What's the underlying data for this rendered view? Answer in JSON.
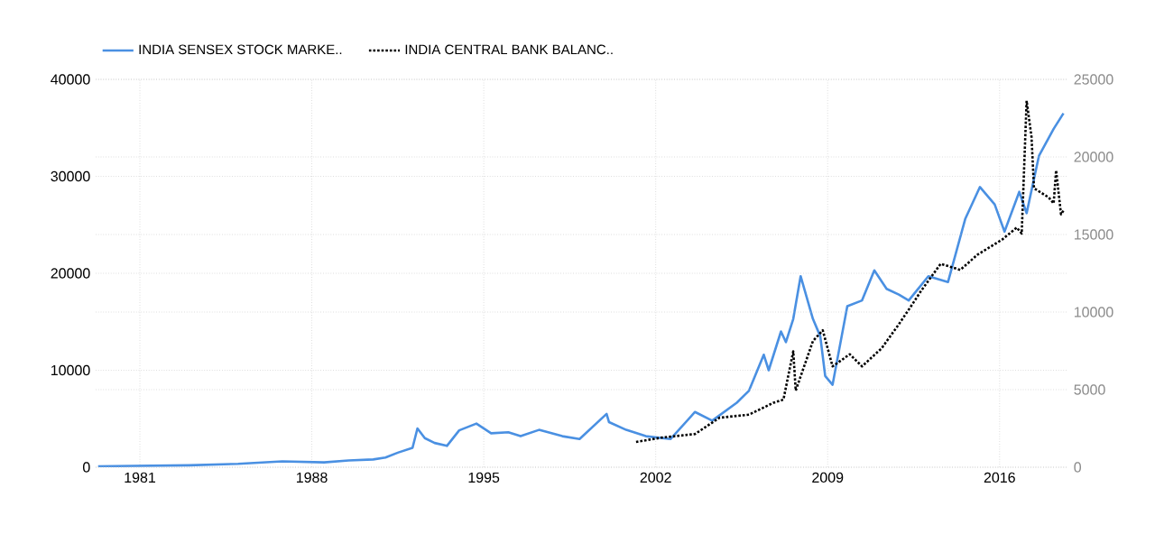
{
  "chart_data": {
    "type": "line",
    "legend": "top left",
    "grid": true,
    "xlim": [
      1979.2,
      2018.8
    ],
    "xticks": [
      1981,
      1988,
      1995,
      2002,
      2009,
      2016
    ],
    "ylim": [
      0,
      40000
    ],
    "yticks": [
      0,
      10000,
      20000,
      30000,
      40000
    ],
    "y2lim": [
      0,
      25000
    ],
    "y2ticks": [
      0,
      5000,
      10000,
      15000,
      20000,
      25000
    ],
    "series": [
      {
        "name": "INDIA SENSEX STOCK MARKE..",
        "color": "#4a90e2",
        "line_style": "solid",
        "x": [
          1979.3,
          1983,
          1985,
          1986.8,
          1988.5,
          1989.5,
          1990.5,
          1991,
          1991.5,
          1992.1,
          1992.3,
          1992.6,
          1993,
          1993.5,
          1994,
          1994.7,
          1995.3,
          1996,
          1996.5,
          1997.25,
          1998.2,
          1998.9,
          2000.0,
          2000.1,
          2000.8,
          2001.6,
          2002.6,
          2003.6,
          2004.3,
          2005.3,
          2005.8,
          2006.4,
          2006.6,
          2007.1,
          2007.3,
          2007.6,
          2007.9,
          2008.4,
          2008.7,
          2008.9,
          2009.2,
          2009.8,
          2010.4,
          2010.9,
          2011.4,
          2011.9,
          2012.3,
          2013.1,
          2013.9,
          2014.6,
          2015.2,
          2015.8,
          2016.2,
          2016.8,
          2017.1,
          2017.6,
          2018.2,
          2018.6
        ],
        "values": [
          100,
          200,
          350,
          600,
          500,
          700,
          800,
          1000,
          1500,
          2000,
          4000,
          3000,
          2500,
          2200,
          3800,
          4500,
          3500,
          3600,
          3200,
          3850,
          3200,
          2900,
          5500,
          4650,
          3850,
          3200,
          2900,
          5700,
          4800,
          6650,
          7900,
          11600,
          10000,
          14000,
          12900,
          15300,
          19700,
          15300,
          13500,
          9400,
          8500,
          16600,
          17200,
          20300,
          18400,
          17800,
          17200,
          19700,
          19100,
          25600,
          28900,
          27100,
          24300,
          28400,
          26200,
          32100,
          34900,
          36500
        ]
      },
      {
        "name": "INDIA CENTRAL BANK BALANC..",
        "color": "#000000",
        "line_style": "dotted",
        "axis": "y2",
        "x": [
          2001.2,
          2002.2,
          2003.6,
          2004.6,
          2005.8,
          2006.8,
          2007.2,
          2007.6,
          2007.7,
          2008.4,
          2008.8,
          2009.2,
          2009.9,
          2010.4,
          2011.2,
          2011.9,
          2012.4,
          2012.8,
          2013.6,
          2014.4,
          2015.1,
          2016.1,
          2016.7,
          2016.9,
          2017.1,
          2017.3,
          2017.4,
          2018.0,
          2018.2,
          2018.3,
          2018.5,
          2018.6
        ],
        "values": [
          1630,
          1900,
          2140,
          3190,
          3390,
          4160,
          4360,
          7470,
          4940,
          8130,
          8830,
          6500,
          7280,
          6500,
          7670,
          9220,
          10390,
          11360,
          13110,
          12720,
          13700,
          14670,
          15450,
          15060,
          23620,
          21280,
          17980,
          17390,
          17000,
          19140,
          16300,
          16540
        ]
      }
    ]
  }
}
